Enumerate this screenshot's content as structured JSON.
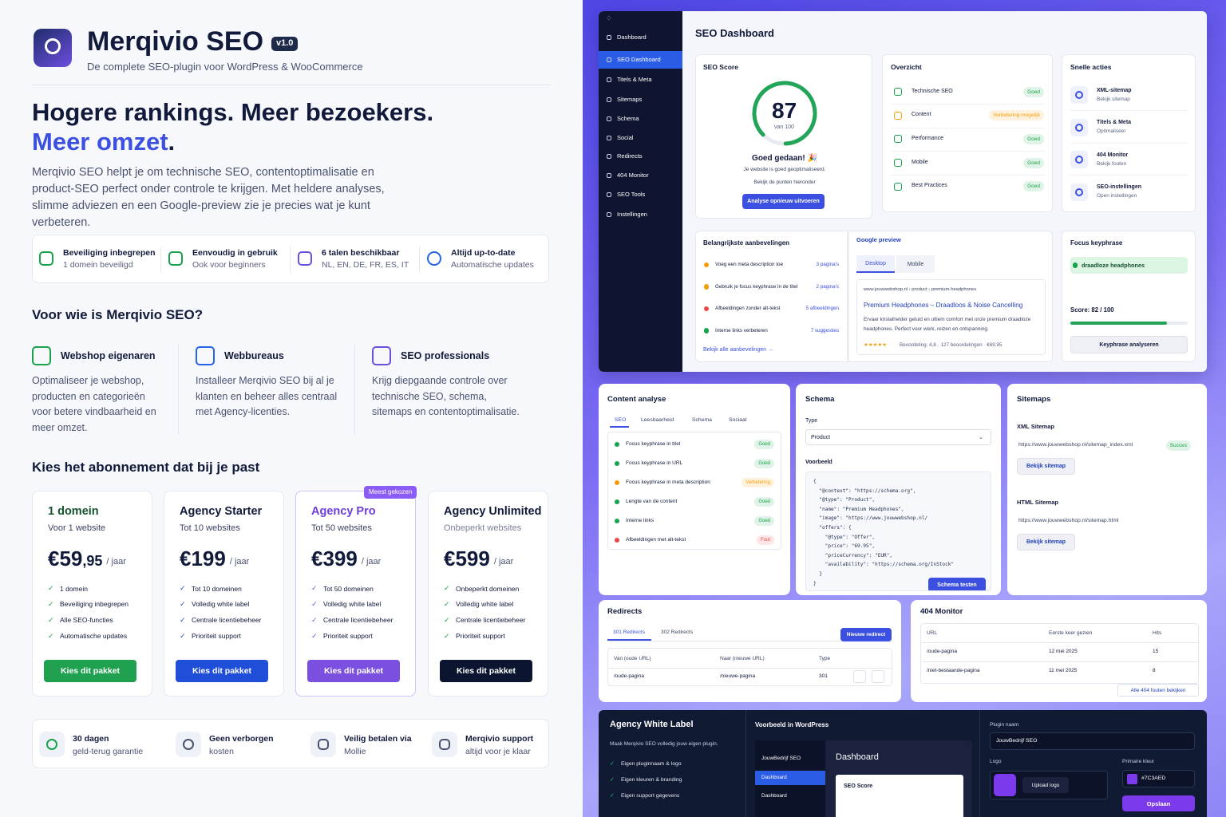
{
  "brand": {
    "name": "Merqivio SEO",
    "version": "v1.0",
    "tagline": "De complete SEO-plugin voor WordPress & WooCommerce"
  },
  "hero": {
    "headline": "Hogere rankings. Meer bezoekers.",
    "highlight": "Meer omzet",
    "highlight_end": ".",
    "intro": "Merqivio SEO helpt je om technische SEO, contentoptimalisatie en product-SEO perfect onder controle te krijgen. Met heldere analyses, slimme adviezen en een Google-preview zie je precies wat je kunt verbeteren."
  },
  "features": [
    {
      "title": "Beveiliging inbegrepen",
      "sub": "1 domein beveiligd",
      "color": "#16a34a"
    },
    {
      "title": "Eenvoudig in gebruik",
      "sub": "Ook voor beginners",
      "color": "#16a34a"
    },
    {
      "title": "6 talen beschikbaar",
      "sub": "NL, EN, DE, FR, ES, IT",
      "color": "#6d4fe0"
    },
    {
      "title": "Altijd up-to-date",
      "sub": "Automatische updates",
      "color": "#2563eb"
    }
  ],
  "audience": {
    "title": "Voor wie is Merqivio SEO?",
    "items": [
      {
        "title": "Webshop eigenaren",
        "text": "Optimaliseer je webshop, producten en categorieën voor betere vindbaarheid en meer omzet.",
        "color": "#16a34a"
      },
      {
        "title": "Webbureaus",
        "text": "Installeer Merqivio SEO bij al je klanten en beheer alles centraal met Agency-licenties.",
        "color": "#2563eb"
      },
      {
        "title": "SEO professionals",
        "text": "Krijg diepgaande controle over technische SEO, schema, sitemaps en contentoptimalisatie.",
        "color": "#6d4fe0"
      }
    ]
  },
  "pricing": {
    "title": "Kies het abonnement dat bij je past",
    "badge": "Meest gekozen",
    "badge_plan": 2,
    "plans": [
      {
        "name": "1 domein",
        "sub": "Voor 1 website",
        "price": "€59",
        "cents": ",95",
        "period": "/ jaar",
        "accent": "#14532d",
        "button_color": "#1fa14f",
        "features": [
          "1 domein",
          "Beveiliging inbegrepen",
          "Alle SEO-functies",
          "Automatische updates"
        ],
        "button": "Kies dit pakket"
      },
      {
        "name": "Agency Starter",
        "sub": "Tot 10 websites",
        "price": "€199",
        "period": "/ jaar",
        "accent": "#111a3a",
        "button_color": "#1f4fd8",
        "features": [
          "Tot 10 domeinen",
          "Volledig white label",
          "Centrale licentiebeheer",
          "Prioriteit support"
        ],
        "button": "Kies dit pakket"
      },
      {
        "name": "Agency Pro",
        "sub": "Tot 50 websites",
        "price": "€399",
        "period": "/ jaar",
        "accent": "#6d3fd9",
        "button_color": "#7b4fe0",
        "features": [
          "Tot 50 domeinen",
          "Volledig white label",
          "Centrale licentiebeheer",
          "Prioriteit support"
        ],
        "button": "Kies dit pakket"
      },
      {
        "name": "Agency Unlimited",
        "sub": "Onbeperkt websites",
        "price": "€599",
        "period": "/ jaar",
        "accent": "#111a3a",
        "button_color": "#0b1530",
        "features": [
          "Onbeperkt domeinen",
          "Volledig white label",
          "Centrale licentiebeheer",
          "Prioriteit support"
        ],
        "button": "Kies dit pakket"
      }
    ]
  },
  "guarantees": [
    {
      "title": "30 dagen",
      "sub": "geld-terug garantie"
    },
    {
      "title": "Geen verborgen",
      "sub": "kosten"
    },
    {
      "title": "Veilig betalen via",
      "sub": "Mollie"
    },
    {
      "title": "Merqivio support",
      "sub": "altijd voor je klaar"
    }
  ],
  "sidebar": {
    "items": [
      "Dashboard",
      "SEO Dashboard",
      "Titels & Meta",
      "Sitemaps",
      "Schema",
      "Social",
      "Redirects",
      "404 Monitor",
      "SEO Tools",
      "Instellingen"
    ],
    "active": 1
  },
  "dashboard": {
    "title": "SEO Dashboard",
    "score": {
      "title": "SEO Score",
      "value": 87,
      "max": {
        "value": 100,
        "label": "van 100"
      },
      "headline": "Goed gedaan! 🎉",
      "text": "Je website is goed geoptimaliseerd.",
      "sub": "Bekijk de punten hieronder",
      "button": "Analyse opnieuw uitvoeren"
    },
    "overview": {
      "title": "Overzicht",
      "items": [
        {
          "label": "Technische SEO",
          "status": "Goed",
          "color": "#16a34a"
        },
        {
          "label": "Content",
          "status": "Verbetering mogelijk",
          "color": "#f59e0b"
        },
        {
          "label": "Performance",
          "status": "Goed",
          "color": "#16a34a"
        },
        {
          "label": "Mobile",
          "status": "Goed",
          "color": "#16a34a"
        },
        {
          "label": "Best Practices",
          "status": "Goed",
          "color": "#16a34a"
        }
      ]
    },
    "quick": {
      "title": "Snelle acties",
      "items": [
        {
          "title": "XML-sitemap",
          "sub": "Bekijk sitemap"
        },
        {
          "title": "Titels & Meta",
          "sub": "Optimaliseer"
        },
        {
          "title": "404 Monitor",
          "sub": "Bekijk fouten"
        },
        {
          "title": "SEO-instellingen",
          "sub": "Open instellingen"
        }
      ]
    },
    "recs": {
      "title": "Belangrijkste aanbevelingen",
      "items": [
        {
          "text": "Voeg een meta description toe",
          "count": "3 pagina's",
          "color": "#f59e0b"
        },
        {
          "text": "Gebruik je focus keyphrase in de titel",
          "count": "2 pagina's",
          "color": "#f59e0b"
        },
        {
          "text": "Afbeeldingen zonder alt-tekst",
          "count": "5 afbeeldingen",
          "color": "#ef4444"
        },
        {
          "text": "Interne links verbeteren",
          "count": "7 suggesties",
          "color": "#16a34a"
        }
      ],
      "link": "Bekijk alle aanbevelingen →"
    },
    "preview": {
      "title": "Google preview",
      "tabs": [
        "Desktop",
        "Mobile"
      ],
      "url": "www.jouwwebshop.nl › product › premium-headphones",
      "headline": "Premium Headphones – Draadloos & Noise Cancelling",
      "desc": "Ervaar kristalhelder geluid en ultiem comfort met onze premium draadloze headphones. Perfect voor werk, reizen en ontspanning.",
      "stars": "★★★★★",
      "rating": "Beoordeling: 4,8 · 127 beoordelingen · €69,95"
    },
    "keyphrase": {
      "title": "Focus keyphrase",
      "value": "draadloze headphones",
      "score": {
        "value": 82,
        "max": 100,
        "label": "Score: 82 / 100"
      },
      "button": "Keyphrase analyseren"
    }
  },
  "content_analysis": {
    "title": "Content analyse",
    "tabs": [
      "SEO",
      "Leesbaarheid",
      "Schema",
      "Sociaal"
    ],
    "items": [
      {
        "label": "Focus keyphrase in titel",
        "status": "Goed",
        "color": "#16a34a"
      },
      {
        "label": "Focus keyphrase in URL",
        "status": "Goed",
        "color": "#16a34a"
      },
      {
        "label": "Focus keyphrase in meta description",
        "status": "Verbetering",
        "color": "#f59e0b"
      },
      {
        "label": "Lengte van de content",
        "status": "Goed",
        "color": "#16a34a"
      },
      {
        "label": "Interne links",
        "status": "Goed",
        "color": "#16a34a"
      },
      {
        "label": "Afbeeldingen met alt-tekst",
        "status": "Fout",
        "color": "#ef4444"
      }
    ]
  },
  "schema": {
    "title": "Schema",
    "type_label": "Type",
    "type": "Product",
    "example_label": "Voorbeeld",
    "code": "{\n  \"@context\": \"https://schema.org\",\n  \"@type\": \"Product\",\n  \"name\": \"Premium Headphones\",\n  \"image\": \"https://www.jouwwebshop.nl/\n  \"offers\": {\n    \"@type\": \"Offer\",\n    \"price\": \"69.95\",\n    \"priceCurrency\": \"EUR\",\n    \"availability\": \"https://schema.org/InStock\"\n  }\n}",
    "button": "Schema testen"
  },
  "sitemaps": {
    "title": "Sitemaps",
    "xml_label": "XML Sitemap",
    "xml_url": "https://www.jouwwebshop.nl/sitemap_index.xml",
    "xml_status": "Succes",
    "xml_button": "Bekijk sitemap",
    "html_label": "HTML Sitemap",
    "html_url": "https://www.jouwwebshop.nl/sitemap.html",
    "html_button": "Bekijk sitemap"
  },
  "redirects": {
    "title": "Redirects",
    "tabs": [
      "301 Redirects",
      "302 Redirects"
    ],
    "button": "Nieuwe redirect",
    "columns": [
      "Van (oude URL)",
      "Naar (nieuwe URL)",
      "Type"
    ],
    "rows": [
      [
        "/oude-pagina",
        "/nieuwe-pagina",
        "301"
      ]
    ]
  },
  "monitor": {
    "title": "404 Monitor",
    "columns": [
      "URL",
      "Eerste keer gezien",
      "Hits"
    ],
    "rows": [
      [
        "/oude-pagina",
        "12 mei 2025",
        "15"
      ],
      [
        "/niet-bestaande-pagina",
        "11 mei 2025",
        "8"
      ]
    ],
    "link": "Alle 404 fouten bekijken"
  },
  "whitelabel": {
    "title": "Agency White Label",
    "text": "Maak Merqivio SEO volledig jouw eigen plugin.",
    "items": [
      "Eigen pluginnaam & logo",
      "Eigen kleuren & branding",
      "Eigen support gegevens"
    ],
    "preview_title": "Voorbeeld in WordPress",
    "preview_brand": "JouwBedrijf SEO",
    "preview_menu": [
      "Dashboard",
      "Dashboard"
    ],
    "preview_heading": "Dashboard",
    "preview_card": "SEO Score",
    "plugin_label": "Plugin naam",
    "plugin_value": "JouwBedrijf SEO",
    "logo_label": "Logo",
    "logo_button": "Upload logo",
    "color_label": "Primaire kleur",
    "color_value": "#7C3AED",
    "save": "Opslaan"
  }
}
